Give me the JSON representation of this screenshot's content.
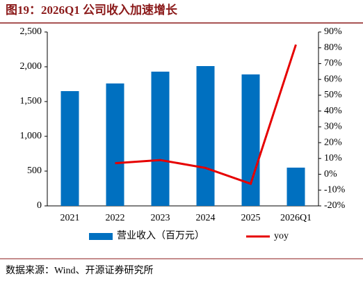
{
  "chart_data": {
    "type": "bar-line",
    "title": "图19：2026Q1 公司收入加速增长",
    "source": "数据来源：Wind、开源证券研究所",
    "categories": [
      "2021",
      "2022",
      "2023",
      "2024",
      "2025",
      "2026Q1"
    ],
    "series": [
      {
        "name": "营业收入（百万元）",
        "type": "bar",
        "color": "#0070c0",
        "values": [
          1650,
          1760,
          1930,
          2010,
          1890,
          550
        ]
      },
      {
        "name": "yoy",
        "type": "line",
        "axis": "y2",
        "color": "#e60000",
        "values": [
          null,
          7,
          9,
          4,
          -6,
          82
        ]
      }
    ],
    "ylim": [
      0,
      2500
    ],
    "yticks": [
      0,
      {
        "value": 500,
        "label": "500"
      },
      {
        "value": 1000,
        "label": "1,000"
      },
      {
        "value": 1500,
        "label": "1,500"
      },
      {
        "value": 2000,
        "label": "2,000"
      },
      {
        "value": 2500,
        "label": "2,500"
      }
    ],
    "y2lim": [
      -20,
      90
    ],
    "y2ticks": [
      {
        "value": -20,
        "label": "-20%"
      },
      {
        "value": -10,
        "label": "-10%"
      },
      {
        "value": 0,
        "label": "0%"
      },
      {
        "value": 10,
        "label": "10%"
      },
      {
        "value": 20,
        "label": "20%"
      },
      {
        "value": 30,
        "label": "30%"
      },
      {
        "value": 40,
        "label": "40%"
      },
      {
        "value": 50,
        "label": "50%"
      },
      {
        "value": 60,
        "label": "60%"
      },
      {
        "value": 70,
        "label": "70%"
      },
      {
        "value": 80,
        "label": "80%"
      },
      {
        "value": 90,
        "label": "90%"
      }
    ],
    "grid": false
  }
}
